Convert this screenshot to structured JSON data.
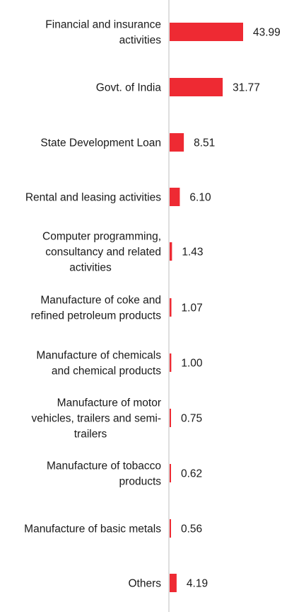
{
  "chart_data": {
    "type": "bar",
    "orientation": "horizontal",
    "title": "",
    "xlabel": "",
    "ylabel": "",
    "bar_color": "#ee2a33",
    "axis_color": "#bdbdbd",
    "xlim": [
      0,
      48
    ],
    "grid": false,
    "legend": "none",
    "categories": [
      [
        "Financial and insurance",
        "activities"
      ],
      [
        "Govt. of India"
      ],
      [
        "State Development Loan"
      ],
      [
        "Rental and leasing activities"
      ],
      [
        "Computer programming,",
        "consultancy and related",
        "activities"
      ],
      [
        "Manufacture of coke and",
        "refined petroleum products"
      ],
      [
        "Manufacture of chemicals",
        "and chemical products"
      ],
      [
        "Manufacture of motor",
        "vehicles, trailers and semi-",
        "trailers"
      ],
      [
        "Manufacture of tobacco",
        "products"
      ],
      [
        "Manufacture of basic metals"
      ],
      [
        "Others"
      ]
    ],
    "values": [
      43.99,
      31.77,
      8.51,
      6.1,
      1.43,
      1.07,
      1.0,
      0.75,
      0.62,
      0.56,
      4.19
    ],
    "value_labels": [
      "43.99",
      "31.77",
      "8.51",
      "6.10",
      "1.43",
      "1.07",
      "1.00",
      "0.75",
      "0.62",
      "0.56",
      "4.19"
    ]
  }
}
